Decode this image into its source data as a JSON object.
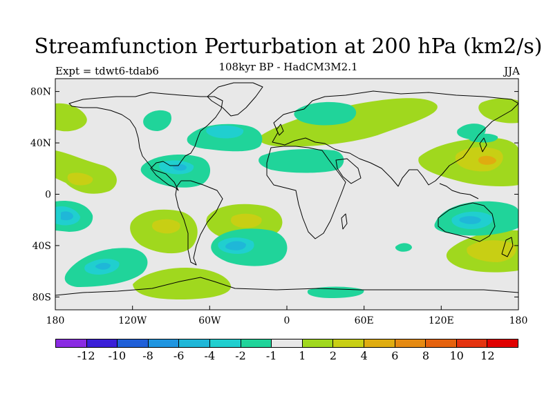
{
  "header": {
    "title": "Streamfunction Perturbation at 200 hPa (km2/s)",
    "subtitle": "108kyr BP - HadCM3M2.1",
    "experiment": "Expt = tdwt6-tdab6",
    "season": "JJA"
  },
  "axes": {
    "lat_ticks": [
      "80N",
      "40N",
      "0",
      "40S",
      "80S"
    ],
    "lon_ticks": [
      "180",
      "120W",
      "60W",
      "0",
      "60E",
      "120E",
      "180"
    ]
  },
  "colorbar": {
    "colors": [
      "#8a2be2",
      "#3a1fd8",
      "#1f5fd8",
      "#1f95e0",
      "#1fb7d8",
      "#20cfcf",
      "#20d49a",
      "#e8e8e8",
      "#a0d81e",
      "#c8cf14",
      "#dfac10",
      "#e58a12",
      "#e5620e",
      "#e4330f",
      "#e00000"
    ],
    "labels": [
      "-12",
      "-10",
      "-8",
      "-6",
      "-4",
      "-2",
      "-1",
      "1",
      "2",
      "4",
      "6",
      "8",
      "10",
      "12"
    ]
  },
  "map_colors": {
    "background": "#e8e8e8",
    "c_pos1": "#a0d81e",
    "c_pos2": "#c8cf14",
    "c_pos3": "#dfac10",
    "c_neg1": "#20d49a",
    "c_neg2": "#20cfcf",
    "c_neg3": "#1fb7d8",
    "coastline": "#000000"
  }
}
